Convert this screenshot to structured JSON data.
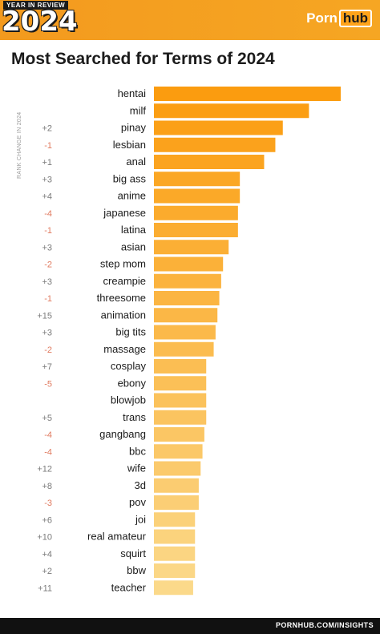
{
  "header": {
    "year_in_review": "YEAR IN REVIEW",
    "year": "2024",
    "logo_part1": "Porn",
    "logo_part2": "hub"
  },
  "footer": {
    "url": "PORNHUB.COM/INSIGHTS"
  },
  "colors": {
    "header_orange": "#f6a623",
    "bar_dark": "#fb9c0f",
    "bar_light": "#fbd98a",
    "positive_change": "#7a7a7a",
    "negative_change": "#e07a5f"
  },
  "chart_data": {
    "type": "bar",
    "orientation": "horizontal",
    "title": "Most Searched for Terms of 2024",
    "side_label": "RANK CHANGE IN 2024",
    "xlabel": "",
    "ylabel": "",
    "categories": [
      "hentai",
      "milf",
      "pinay",
      "lesbian",
      "anal",
      "big ass",
      "anime",
      "japanese",
      "latina",
      "asian",
      "step mom",
      "creampie",
      "threesome",
      "animation",
      "big tits",
      "massage",
      "cosplay",
      "ebony",
      "blowjob",
      "trans",
      "gangbang",
      "bbc",
      "wife",
      "3d",
      "pov",
      "joi",
      "real amateur",
      "squirt",
      "bbw",
      "teacher"
    ],
    "values": [
      100,
      83,
      69,
      65,
      59,
      46,
      46,
      45,
      45,
      40,
      37,
      36,
      35,
      34,
      33,
      32,
      28,
      28,
      28,
      28,
      27,
      26,
      25,
      24,
      24,
      22,
      22,
      22,
      22,
      21
    ],
    "rank_change": [
      "",
      "",
      "+2",
      "-1",
      "+1",
      "+3",
      "+4",
      "-4",
      "-1",
      "+3",
      "-2",
      "+3",
      "-1",
      "+15",
      "+3",
      "-2",
      "+7",
      "-5",
      "",
      "+5",
      "-4",
      "-4",
      "+12",
      "+8",
      "-3",
      "+6",
      "+10",
      "+4",
      "+2",
      "+11"
    ],
    "grid": false,
    "legend": "none"
  }
}
